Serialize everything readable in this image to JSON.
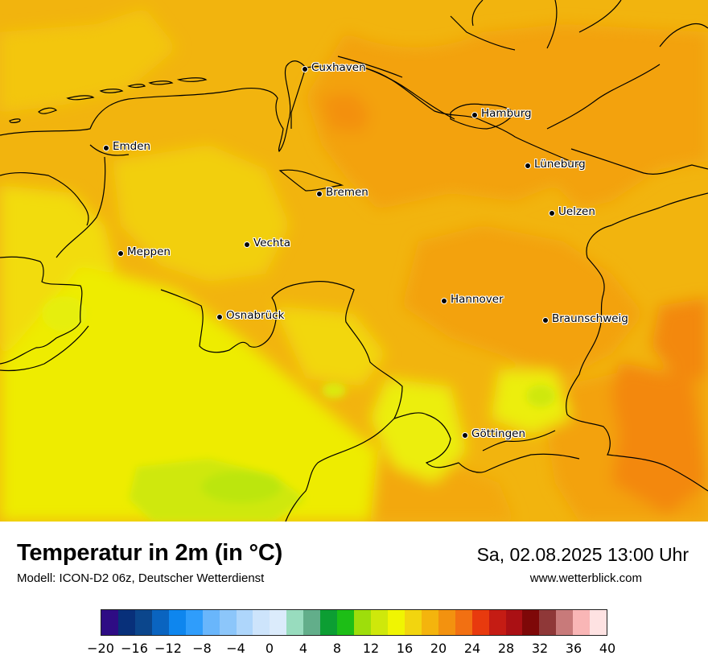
{
  "map": {
    "cities": [
      {
        "name": "Cuxhaven"
      },
      {
        "name": "Hamburg"
      },
      {
        "name": "Emden"
      },
      {
        "name": "Lüneburg"
      },
      {
        "name": "Bremen"
      },
      {
        "name": "Uelzen"
      },
      {
        "name": "Vechta"
      },
      {
        "name": "Meppen"
      },
      {
        "name": "Hannover"
      },
      {
        "name": "Osnabrück"
      },
      {
        "name": "Braunschweig"
      },
      {
        "name": "Göttingen"
      }
    ]
  },
  "footer": {
    "title": "Temperatur in 2m (in °C)",
    "subtitle": "Modell: ICON-D2 06z, Deutscher Wetterdienst",
    "datetime": "Sa, 02.08.2025 13:00 Uhr",
    "website": "www.wetterblick.com"
  },
  "colorbar": {
    "unit": "°C",
    "min": -20,
    "max": 40,
    "step": 2,
    "tick_labels": [
      "−20",
      "−16",
      "−12",
      "−8",
      "−4",
      "0",
      "4",
      "8",
      "12",
      "16",
      "20",
      "24",
      "28",
      "32",
      "36",
      "40"
    ],
    "colors": [
      "#2e0c84",
      "#08307a",
      "#0b468c",
      "#0a64c0",
      "#0e86ee",
      "#2f9dfb",
      "#69b6fb",
      "#8cc6fa",
      "#aed6fb",
      "#cde4fb",
      "#dbebfb",
      "#98dcbe",
      "#62ae8a",
      "#0c9e33",
      "#1dbe16",
      "#9ede0b",
      "#cfe80b",
      "#f0f502",
      "#f2d50f",
      "#f4b40d",
      "#f3920f",
      "#f27012",
      "#e83a0e",
      "#c51c14",
      "#aa1014",
      "#7e0808",
      "#8f3838",
      "#c87a7a",
      "#f9b6b6",
      "#fee2e2"
    ]
  }
}
